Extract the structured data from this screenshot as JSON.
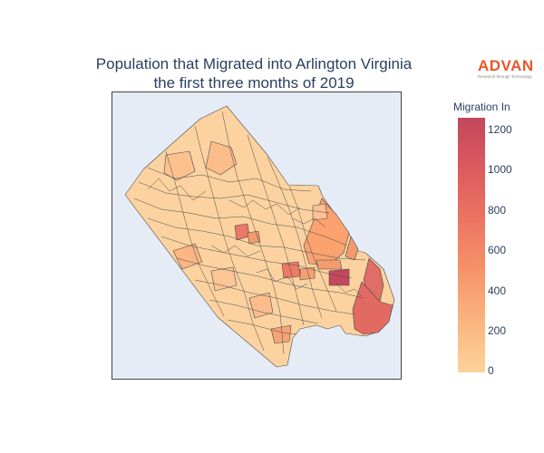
{
  "title_line1": "Population that Migrated into Arlington Virginia",
  "title_line2": "the first three months of 2019",
  "logo": {
    "word": "ADVAN",
    "tagline": "Research through Technology",
    "color": "#e8562a"
  },
  "colorbar": {
    "title": "Migration In",
    "ticks": [
      "1200",
      "1000",
      "800",
      "600",
      "400",
      "200",
      "0"
    ],
    "scale": [
      "#fcd39b",
      "#fbb57e",
      "#f6936a",
      "#ec7462",
      "#dc5b5e",
      "#c3475d"
    ],
    "range": [
      0,
      1260
    ]
  },
  "chart_data": {
    "type": "choropleth",
    "region": "Arlington Virginia",
    "variable": "Migration In",
    "range": [
      0,
      1260
    ],
    "highlighted_regions": [
      {
        "area": "east-river-strip",
        "value": 920
      },
      {
        "area": "pentagon-area",
        "value": 1200
      },
      {
        "area": "river-upper-east",
        "value": 420
      },
      {
        "area": "central-block",
        "value": 560
      },
      {
        "area": "north-central-block",
        "value": 420
      },
      {
        "area": "ballston-cluster",
        "value": 760
      }
    ]
  }
}
